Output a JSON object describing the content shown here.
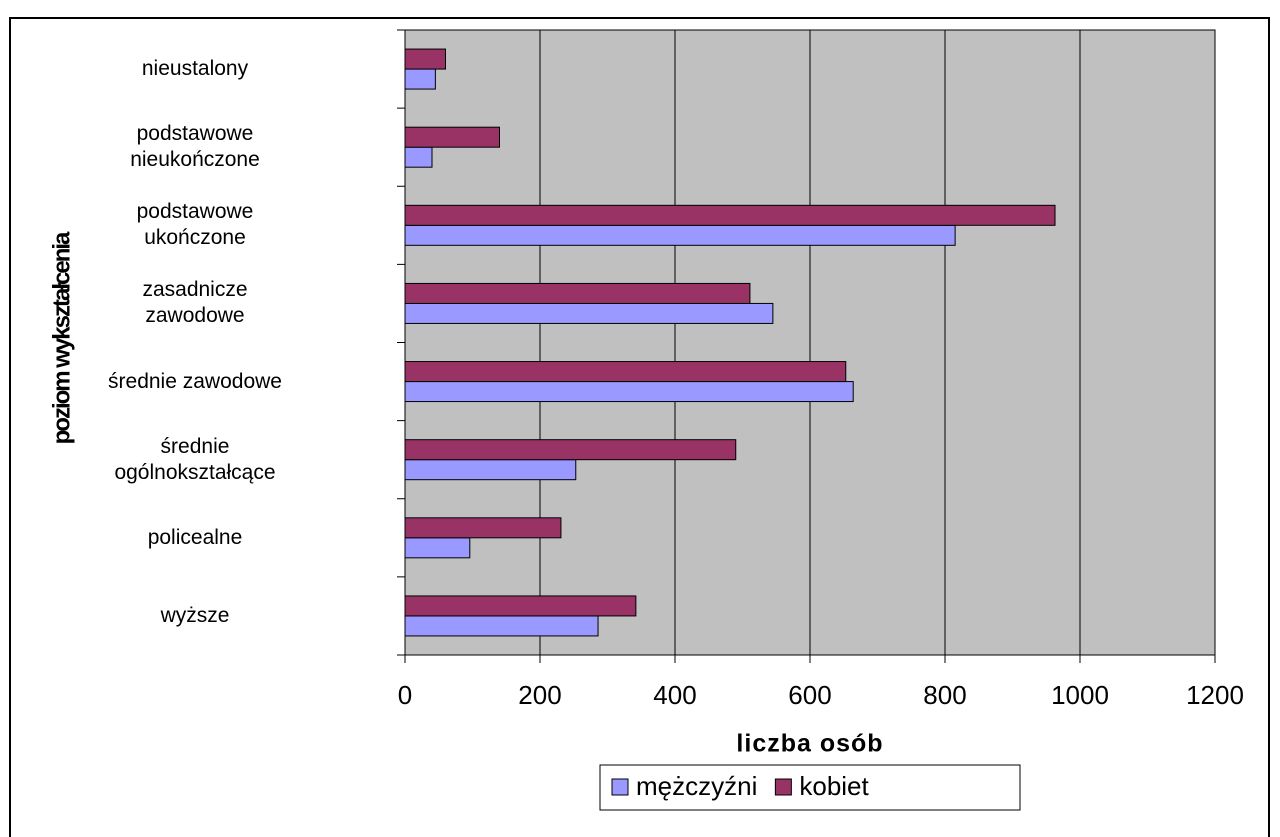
{
  "chart_data": {
    "type": "hbar",
    "x_label": "liczba osób",
    "y_label": "poziom wykształcenia",
    "categories": [
      "nieustalony",
      "podstawowe\nnieukończone",
      "podstawowe\nukończone",
      "zasadnicze\nzawodowe",
      "średnie zawodowe",
      "średnie\nogólnokształcące",
      "policealne",
      "wyższe"
    ],
    "series": [
      {
        "name": "mężczyźni",
        "color": "#9999ff",
        "values": [
          45,
          40,
          815,
          545,
          664,
          253,
          96,
          286
        ]
      },
      {
        "name": "kobiet",
        "color": "#993366",
        "values": [
          60,
          140,
          963,
          511,
          653,
          490,
          231,
          342
        ]
      }
    ],
    "xlim": [
      0,
      1200
    ],
    "xticks": [
      0,
      200,
      400,
      600,
      800,
      1000,
      1200
    ],
    "grid": true,
    "plot_background": "#c0c0c0",
    "legend": "bottom"
  }
}
